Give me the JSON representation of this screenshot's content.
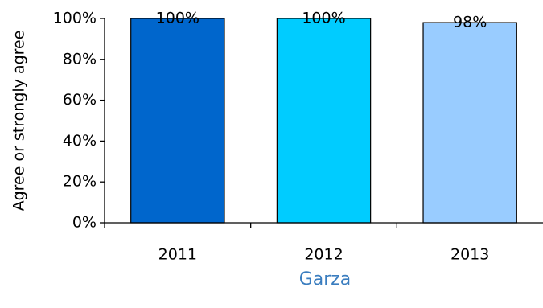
{
  "chart_data": {
    "type": "bar",
    "categories": [
      "2011",
      "2012",
      "2013"
    ],
    "values": [
      100,
      100,
      98
    ],
    "value_labels": [
      "100%",
      "100%",
      "98%"
    ],
    "colors": [
      "#0066cc",
      "#00ccff",
      "#99ccff"
    ],
    "x_label": "Garza",
    "y_label": "Agree or strongly agree",
    "ylim": [
      0,
      100
    ],
    "yticks": [
      {
        "value": 0,
        "label": "0%"
      },
      {
        "value": 20,
        "label": "20%"
      },
      {
        "value": 40,
        "label": "40%"
      },
      {
        "value": 60,
        "label": "60%"
      },
      {
        "value": 80,
        "label": "80%"
      },
      {
        "value": 100,
        "label": "100%"
      }
    ],
    "grid": false
  }
}
